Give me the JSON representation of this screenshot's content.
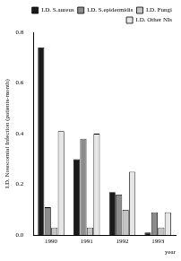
{
  "chart_data": {
    "type": "bar",
    "y_label": "I.D. Nosocomial Infection (patients-month)",
    "x_label": "year",
    "categories": [
      "1990",
      "1991",
      "1992",
      "1993"
    ],
    "series": [
      {
        "name": "I.D. S.aureus",
        "color": "#1a1a1a",
        "values": [
          0.74,
          0.3,
          0.17,
          0.01
        ]
      },
      {
        "name": "I.D. S.epidermidis",
        "color": "#8c8c8c",
        "values": [
          0.11,
          0.38,
          0.16,
          0.09
        ]
      },
      {
        "name": "I.D. Fungi",
        "color": "#c4c4c4",
        "values": [
          0.03,
          0.03,
          0.1,
          0.03
        ]
      },
      {
        "name": "I.D. Other NIs",
        "color": "#e6e6e6",
        "values": [
          0.41,
          0.4,
          0.25,
          0.09
        ]
      }
    ],
    "ylim": [
      0,
      0.8
    ],
    "yticks": [
      {
        "value": 0,
        "label": "0.0"
      },
      0.2,
      0.4,
      0.6,
      0.8
    ],
    "legend": "upper right",
    "grid": false
  }
}
